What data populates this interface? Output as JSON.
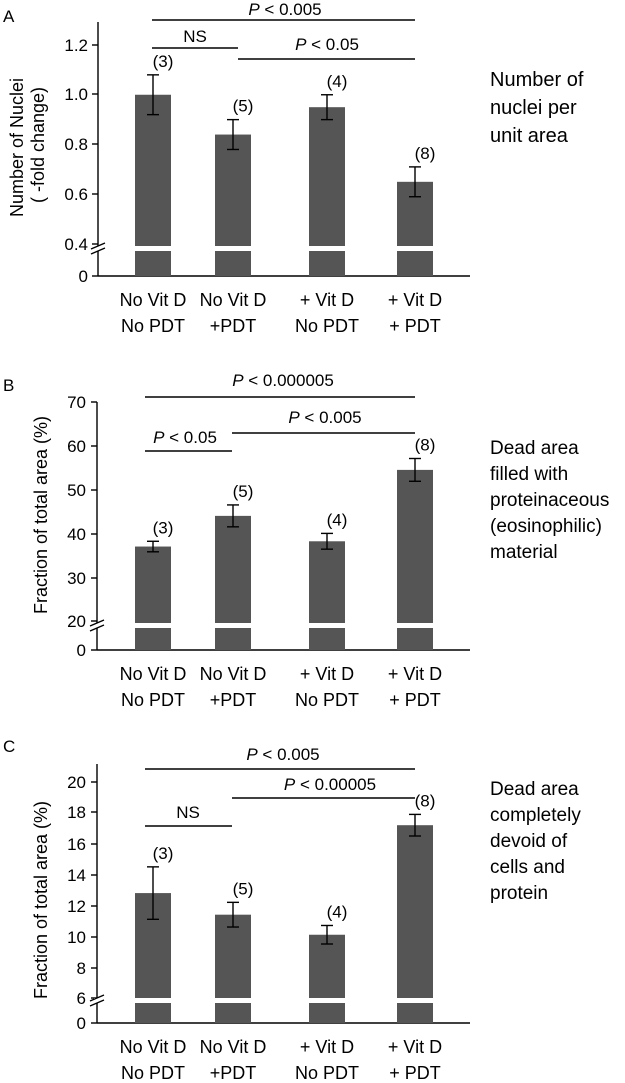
{
  "colors": {
    "bar": "#555555",
    "axis": "#000000",
    "background": "#ffffff"
  },
  "panels": [
    {
      "letter": "A",
      "ylabel_lines": [
        "Number of  Nuclei",
        "( -fold change)"
      ],
      "note_lines": [
        "Number of",
        "nuclei per",
        "unit area"
      ],
      "ticks": [
        "1.2",
        "1.0",
        "0.8",
        "0.6",
        "0.4"
      ],
      "zero_label": "0",
      "sig": [
        {
          "p": "P",
          "text": " < 0.005"
        },
        {
          "text": "NS"
        },
        {
          "p": "P",
          "text": " < 0.05"
        }
      ]
    },
    {
      "letter": "B",
      "ylabel_lines": [
        "Fraction of total area (%)"
      ],
      "note_lines": [
        "Dead area",
        "filled with",
        "proteinaceous",
        "(eosinophilic)",
        "material"
      ],
      "ticks": [
        "70",
        "60",
        "50",
        "40",
        "30",
        "20"
      ],
      "zero_label": "0",
      "sig": [
        {
          "p": "P",
          "text": " < 0.000005"
        },
        {
          "p": "P",
          "text": " < 0.05"
        },
        {
          "p": "P",
          "text": " < 0.005"
        }
      ]
    },
    {
      "letter": "C",
      "ylabel_lines": [
        "Fraction of total area (%)"
      ],
      "note_lines": [
        "Dead area",
        "completely",
        "devoid of",
        "cells and",
        "protein"
      ],
      "ticks": [
        "20",
        "18",
        "16",
        "14",
        "12",
        "10",
        "8",
        "6"
      ],
      "zero_label": "0",
      "sig": [
        {
          "p": "P",
          "text": " < 0.005"
        },
        {
          "text": "NS"
        },
        {
          "p": "P",
          "text": " < 0.00005"
        }
      ]
    }
  ],
  "chart_data": [
    {
      "type": "bar",
      "panel": "A",
      "categories": [
        [
          "No Vit D",
          "No PDT"
        ],
        [
          "No Vit D",
          "+PDT"
        ],
        [
          "+ Vit D",
          "No PDT"
        ],
        [
          "+ Vit D",
          "+ PDT"
        ]
      ],
      "values": [
        1.0,
        0.84,
        0.95,
        0.65
      ],
      "errors": [
        0.08,
        0.06,
        0.05,
        0.06
      ],
      "n_labels": [
        "(3)",
        "(5)",
        "(4)",
        "(8)"
      ],
      "ylabel": "Number of  Nuclei ( -fold change)",
      "ylim": [
        0.4,
        1.3
      ],
      "axis_break": true,
      "annotations": [
        "P < 0.005",
        "NS",
        "P < 0.05"
      ]
    },
    {
      "type": "bar",
      "panel": "B",
      "categories": [
        [
          "No Vit D",
          "No PDT"
        ],
        [
          "No Vit D",
          "+PDT"
        ],
        [
          "+ Vit D",
          "No PDT"
        ],
        [
          "+ Vit D",
          "+ PDT"
        ]
      ],
      "values": [
        37,
        44,
        38.2,
        54.5
      ],
      "errors": [
        1.2,
        2.5,
        1.8,
        2.6
      ],
      "n_labels": [
        "(3)",
        "(5)",
        "(4)",
        "(8)"
      ],
      "ylabel": "Fraction of total area (%)",
      "ylim": [
        20,
        70
      ],
      "axis_break": true,
      "annotations": [
        "P < 0.000005",
        "P < 0.05",
        "P < 0.005"
      ]
    },
    {
      "type": "bar",
      "panel": "C",
      "categories": [
        [
          "No Vit D",
          "No PDT"
        ],
        [
          "No Vit D",
          "+PDT"
        ],
        [
          "+ Vit D",
          "No PDT"
        ],
        [
          "+ Vit D",
          "+ PDT"
        ]
      ],
      "values": [
        12.8,
        11.4,
        10.1,
        17.2
      ],
      "errors": [
        1.7,
        0.8,
        0.6,
        0.7
      ],
      "n_labels": [
        "(3)",
        "(5)",
        "(4)",
        "(8)"
      ],
      "ylabel": "Fraction of total area (%)",
      "ylim": [
        6,
        21
      ],
      "axis_break": true,
      "annotations": [
        "P < 0.005",
        "NS",
        "P < 0.00005"
      ]
    }
  ]
}
